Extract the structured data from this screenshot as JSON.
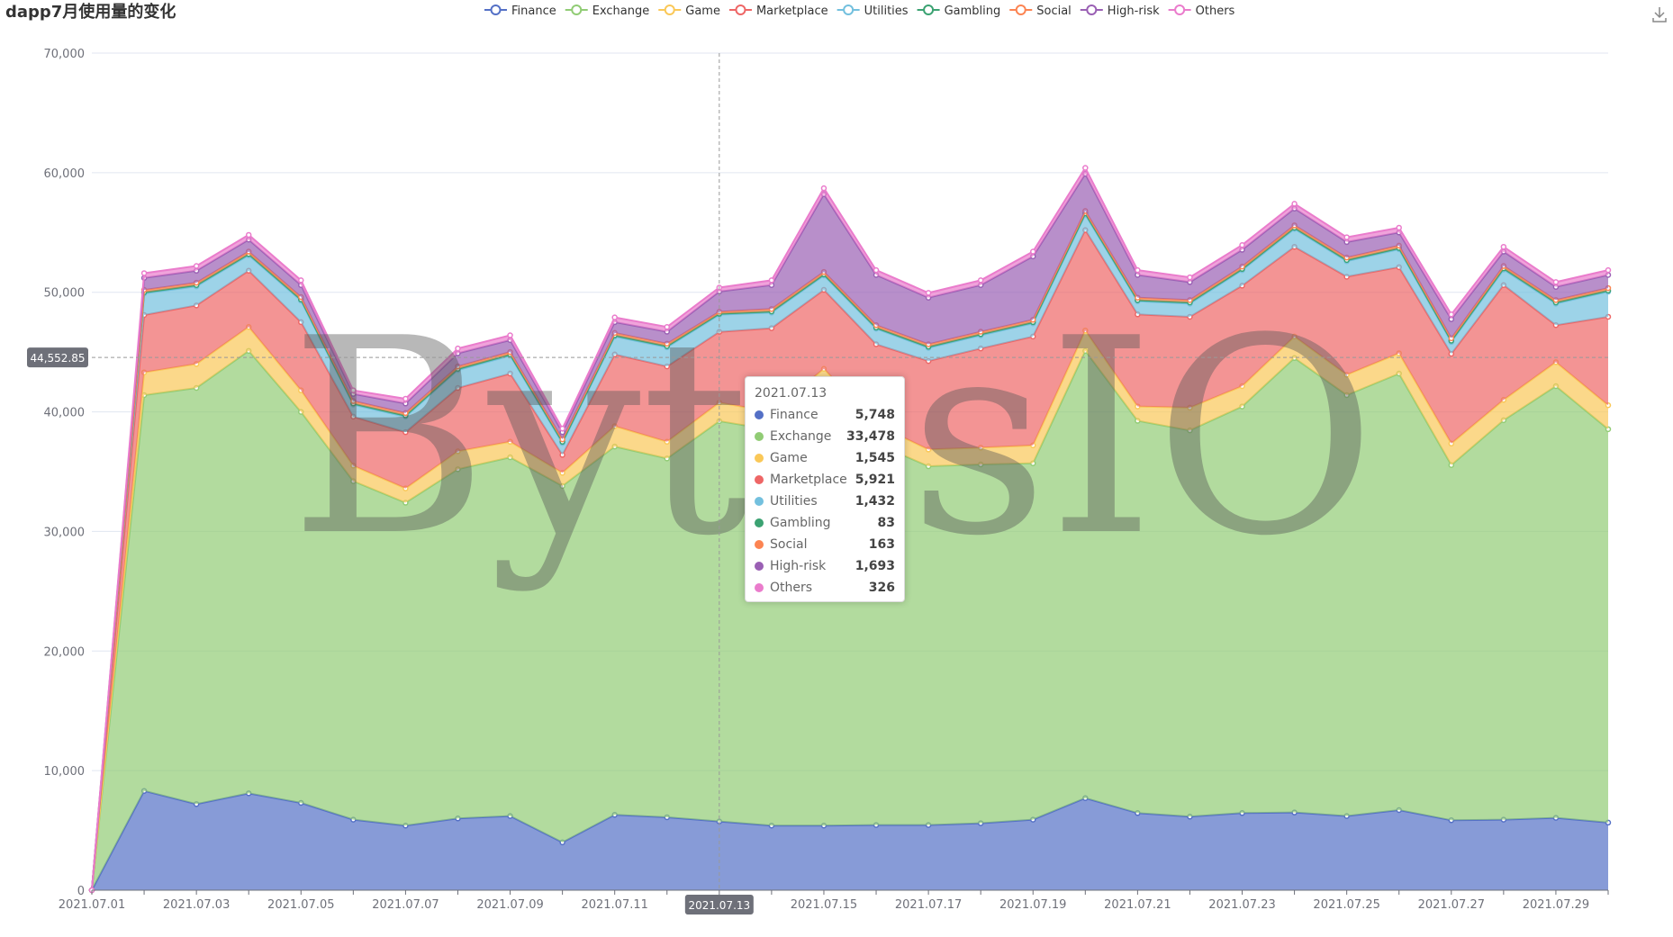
{
  "title": "dapp7月使用量的变化",
  "watermark": "BytesIO",
  "legend": [
    {
      "name": "Finance",
      "color": "#5470c6"
    },
    {
      "name": "Exchange",
      "color": "#91cc75"
    },
    {
      "name": "Game",
      "color": "#fac858"
    },
    {
      "name": "Marketplace",
      "color": "#ee6666"
    },
    {
      "name": "Utilities",
      "color": "#73c0de"
    },
    {
      "name": "Gambling",
      "color": "#3ba272"
    },
    {
      "name": "Social",
      "color": "#fc8452"
    },
    {
      "name": "High-risk",
      "color": "#9a60b4"
    },
    {
      "name": "Others",
      "color": "#ea7ccc"
    }
  ],
  "pointer": {
    "y_label": "44,552.85",
    "x_label": "2021.07.13"
  },
  "tooltip": {
    "date": "2021.07.13",
    "rows": [
      {
        "name": "Finance",
        "value": "5,748",
        "color": "#5470c6"
      },
      {
        "name": "Exchange",
        "value": "33,478",
        "color": "#91cc75"
      },
      {
        "name": "Game",
        "value": "1,545",
        "color": "#fac858"
      },
      {
        "name": "Marketplace",
        "value": "5,921",
        "color": "#ee6666"
      },
      {
        "name": "Utilities",
        "value": "1,432",
        "color": "#73c0de"
      },
      {
        "name": "Gambling",
        "value": "83",
        "color": "#3ba272"
      },
      {
        "name": "Social",
        "value": "163",
        "color": "#fc8452"
      },
      {
        "name": "High-risk",
        "value": "1,693",
        "color": "#9a60b4"
      },
      {
        "name": "Others",
        "value": "326",
        "color": "#ea7ccc"
      }
    ]
  },
  "chart_data": {
    "type": "area",
    "stacked": true,
    "title": "dapp7月使用量的变化",
    "x": [
      "2021.07.01",
      "2021.07.02",
      "2021.07.03",
      "2021.07.04",
      "2021.07.05",
      "2021.07.06",
      "2021.07.07",
      "2021.07.08",
      "2021.07.09",
      "2021.07.10",
      "2021.07.11",
      "2021.07.12",
      "2021.07.13",
      "2021.07.14",
      "2021.07.15",
      "2021.07.16",
      "2021.07.17",
      "2021.07.18",
      "2021.07.19",
      "2021.07.20",
      "2021.07.21",
      "2021.07.22",
      "2021.07.23",
      "2021.07.24",
      "2021.07.25",
      "2021.07.26",
      "2021.07.27",
      "2021.07.28",
      "2021.07.29",
      "2021.07.30"
    ],
    "x_tick_labels": [
      "2021.07.01",
      "2021.07.03",
      "2021.07.05",
      "2021.07.07",
      "2021.07.09",
      "2021.07.11",
      "2021.07.13",
      "2021.07.15",
      "2021.07.17",
      "2021.07.19",
      "2021.07.21",
      "2021.07.23",
      "2021.07.25",
      "2021.07.27",
      "2021.07.29"
    ],
    "y_ticks": [
      "0",
      "10,000",
      "20,000",
      "30,000",
      "40,000",
      "50,000",
      "60,000",
      "70,000"
    ],
    "ylim": [
      0,
      70000
    ],
    "grid": true,
    "legend_position": "top-center",
    "series": [
      {
        "name": "Finance",
        "color": "#5470c6",
        "values": [
          0,
          8300,
          7200,
          8100,
          7300,
          5900,
          5400,
          6000,
          6200,
          4000,
          6300,
          6100,
          5748,
          5400,
          5400,
          5450,
          5450,
          5600,
          5900,
          7700,
          6450,
          6150,
          6450,
          6500,
          6200,
          6700,
          5850,
          5900,
          6050,
          5650
        ]
      },
      {
        "name": "Exchange",
        "color": "#91cc75",
        "values": [
          0,
          33100,
          34800,
          37000,
          32700,
          28300,
          27000,
          29200,
          30000,
          29800,
          30800,
          30000,
          33478,
          33100,
          34800,
          31900,
          30000,
          30000,
          29800,
          37400,
          32800,
          32300,
          34000,
          38000,
          35200,
          36500,
          29700,
          33400,
          36100,
          32900
        ]
      },
      {
        "name": "Game",
        "color": "#fac858",
        "values": [
          0,
          1900,
          2000,
          2000,
          1800,
          1300,
          1200,
          1500,
          1300,
          1100,
          1700,
          1400,
          1545,
          1500,
          3400,
          1600,
          1400,
          1400,
          1500,
          1700,
          1200,
          1900,
          1700,
          1800,
          1700,
          1700,
          1800,
          1700,
          2000,
          2000
        ]
      },
      {
        "name": "Marketplace",
        "color": "#ee6666",
        "values": [
          0,
          4800,
          4900,
          4700,
          5700,
          4100,
          4700,
          5300,
          5700,
          1500,
          6000,
          6300,
          5921,
          7000,
          6600,
          6700,
          7400,
          8300,
          9100,
          8400,
          7700,
          7600,
          8400,
          7500,
          8200,
          7200,
          7500,
          9600,
          3100,
          7400
        ]
      },
      {
        "name": "Utilities",
        "color": "#73c0de",
        "values": [
          0,
          1800,
          1600,
          1300,
          1800,
          1000,
          1300,
          1500,
          1500,
          1000,
          1500,
          1600,
          1432,
          1300,
          1200,
          1300,
          1100,
          1100,
          1100,
          1300,
          1100,
          1100,
          1300,
          1500,
          1300,
          1500,
          1000,
          1300,
          1800,
          2100
        ]
      },
      {
        "name": "Gambling",
        "color": "#3ba272",
        "values": [
          0,
          100,
          100,
          100,
          100,
          100,
          100,
          100,
          100,
          100,
          100,
          100,
          83,
          100,
          100,
          100,
          100,
          100,
          100,
          100,
          100,
          100,
          100,
          100,
          100,
          100,
          100,
          100,
          100,
          100
        ]
      },
      {
        "name": "Social",
        "color": "#fc8452",
        "values": [
          0,
          200,
          200,
          200,
          200,
          200,
          200,
          200,
          200,
          200,
          200,
          200,
          163,
          200,
          200,
          200,
          200,
          200,
          200,
          200,
          200,
          200,
          200,
          200,
          200,
          200,
          200,
          200,
          200,
          200
        ]
      },
      {
        "name": "High-risk",
        "color": "#9a60b4",
        "values": [
          0,
          1000,
          1000,
          1000,
          1000,
          600,
          800,
          1100,
          1000,
          600,
          900,
          1000,
          1693,
          2000,
          6500,
          4200,
          3900,
          3900,
          5300,
          3100,
          1900,
          1500,
          1400,
          1400,
          1300,
          1100,
          1600,
          1200,
          1100,
          1100
        ]
      },
      {
        "name": "Others",
        "color": "#ea7ccc",
        "values": [
          0,
          400,
          400,
          400,
          400,
          300,
          400,
          400,
          400,
          300,
          400,
          400,
          326,
          400,
          500,
          400,
          400,
          400,
          400,
          500,
          400,
          400,
          400,
          400,
          400,
          400,
          400,
          400,
          400,
          400
        ]
      }
    ]
  }
}
